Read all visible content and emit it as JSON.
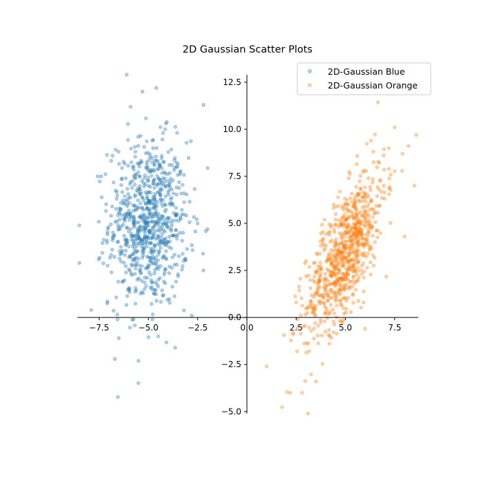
{
  "chart_data": {
    "type": "scatter",
    "title": "2D Gaussian Scatter Plots",
    "xlabel": "",
    "ylabel": "",
    "xlim": [
      -8.6,
      8.7
    ],
    "ylim": [
      -5.1,
      12.9
    ],
    "x_ticks": [
      -7.5,
      -5.0,
      -2.5,
      0.0,
      2.5,
      5.0,
      7.5
    ],
    "x_tick_labels": [
      "−7.5",
      "−5.0",
      "−2.5",
      "0.0",
      "2.5",
      "5.0",
      "7.5"
    ],
    "y_ticks": [
      -5.0,
      -2.5,
      0.0,
      2.5,
      5.0,
      7.5,
      10.0,
      12.5
    ],
    "y_tick_labels": [
      "−5.0",
      "−2.5",
      "0.0",
      "2.5",
      "5.0",
      "7.5",
      "10.0",
      "12.5"
    ],
    "spines": "centered at origin",
    "grid": false,
    "legend_position": "upper-right",
    "series": [
      {
        "name": "2D-Gaussian Blue",
        "color": "#1f77b4",
        "alpha": 0.35,
        "distribution": {
          "mean": [
            -5.0,
            5.0
          ],
          "std": [
            1.0,
            2.2
          ],
          "correlation": 0.0,
          "count": 800
        },
        "notable_points": [
          [
            -6.1,
            12.9
          ],
          [
            -4.6,
            12.2
          ],
          [
            -5.3,
            12.0
          ],
          [
            -2.2,
            11.3
          ],
          [
            -5.9,
            11.2
          ],
          [
            -8.5,
            4.9
          ],
          [
            -8.5,
            2.9
          ],
          [
            -2.5,
            5.0
          ],
          [
            -7.9,
            0.4
          ],
          [
            -6.7,
            -2.2
          ],
          [
            -5.5,
            -2.3
          ],
          [
            -6.5,
            -1.1
          ],
          [
            -4.5,
            -1.0
          ],
          [
            -4.8,
            -0.1
          ],
          [
            -2.8,
            0.1
          ]
        ]
      },
      {
        "name": "2D-Gaussian Orange",
        "color": "#ff7f0e",
        "alpha": 0.35,
        "distribution": {
          "mean": [
            5.0,
            3.5
          ],
          "std": [
            1.0,
            2.2
          ],
          "correlation": 0.7,
          "count": 800
        },
        "notable_points": [
          [
            7.5,
            10.1
          ],
          [
            8.6,
            9.7
          ],
          [
            6.3,
            9.4
          ],
          [
            7.9,
            8.7
          ],
          [
            7.2,
            9.0
          ],
          [
            1.0,
            -2.6
          ],
          [
            2.2,
            -4.0
          ],
          [
            2.8,
            -4.0
          ],
          [
            3.1,
            -5.1
          ],
          [
            3.5,
            -3.4
          ],
          [
            8.0,
            4.3
          ],
          [
            8.5,
            7.0
          ],
          [
            3.0,
            3.0
          ],
          [
            2.5,
            0.8
          ],
          [
            6.0,
            -0.6
          ]
        ]
      }
    ]
  }
}
